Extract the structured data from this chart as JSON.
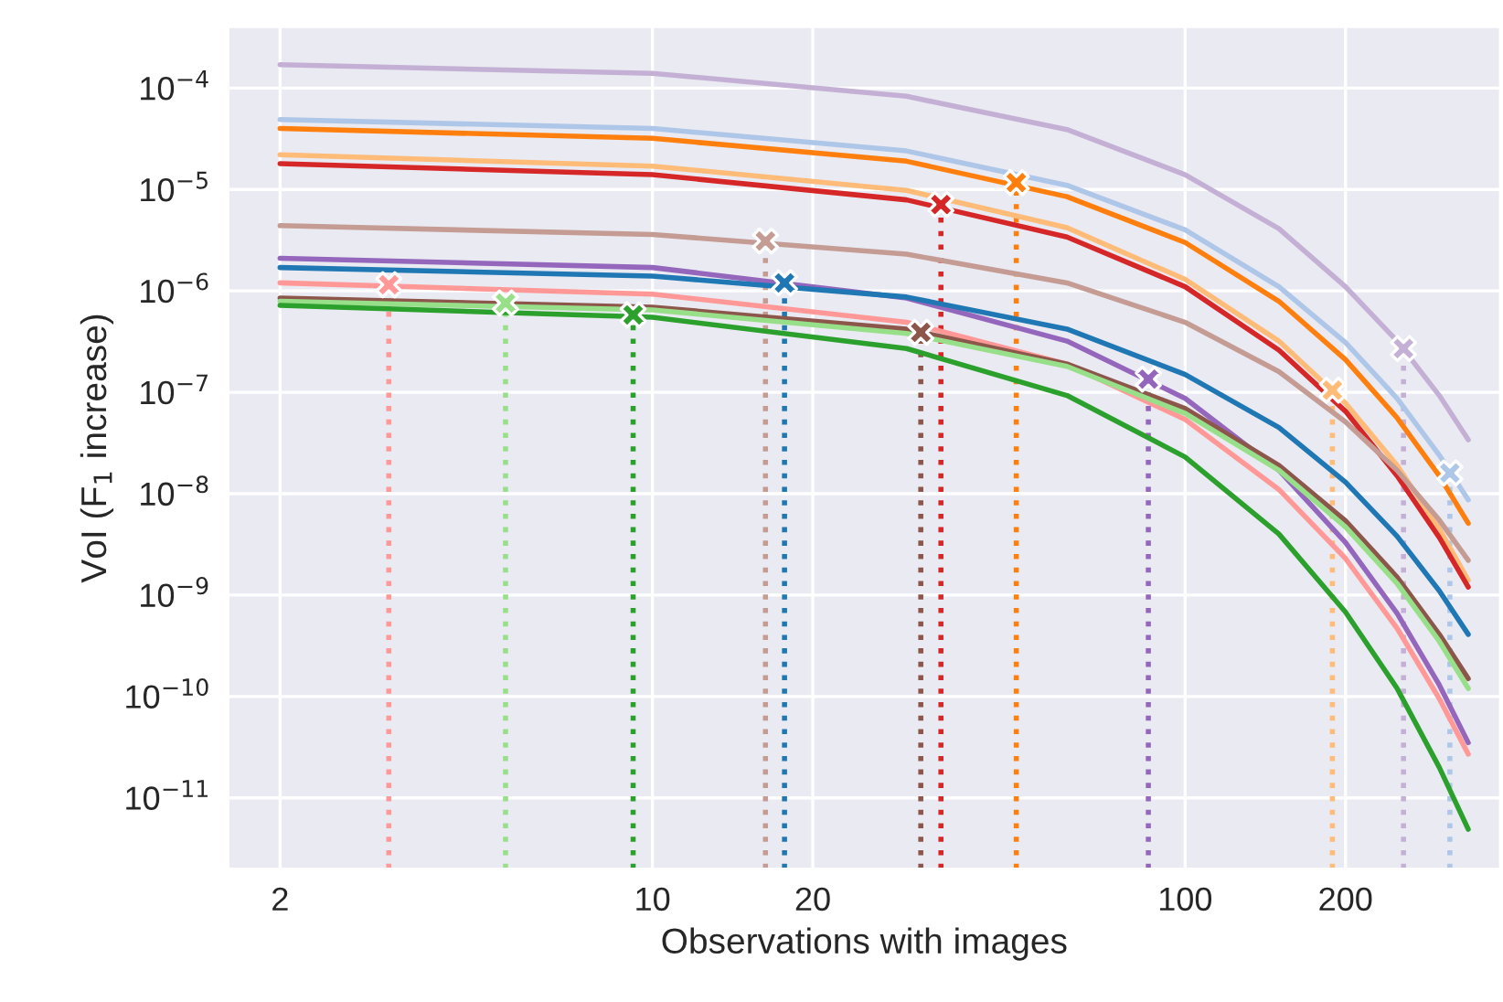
{
  "chart_data": {
    "type": "line",
    "xlabel": "Observations with images",
    "ylabel": "VoI (F$_{1}$ increase)",
    "log": "xy",
    "grid": true,
    "x": [
      2,
      10,
      30,
      60,
      100,
      150,
      200,
      250,
      300,
      340
    ],
    "xlim": [
      1.6,
      390
    ],
    "xticks": [
      2,
      10,
      20,
      100,
      200
    ],
    "ylim": [
      2e-12,
      0.0004
    ],
    "yticks": [
      {
        "value": 0.0001,
        "label": "10$^{−4}$"
      },
      {
        "value": 1e-05,
        "label": "10$^{−5}$"
      },
      {
        "value": 1e-06,
        "label": "10$^{−6}$"
      },
      {
        "value": 1e-07,
        "label": "10$^{−7}$"
      },
      {
        "value": 1e-08,
        "label": "10$^{−8}$"
      },
      {
        "value": 1e-09,
        "label": "10$^{−9}$"
      },
      {
        "value": 1e-10,
        "label": "10$^{−10}$"
      },
      {
        "value": 1e-11,
        "label": "10$^{−11}$"
      }
    ],
    "series": [
      {
        "color": "#c5b0d5",
        "values": [
          0.00017,
          0.00014,
          8.3e-05,
          3.9e-05,
          1.4e-05,
          4.1e-06,
          1.1e-06,
          3.2e-07,
          9.3e-08,
          3.4e-08
        ]
      },
      {
        "color": "#aec7e8",
        "values": [
          4.9e-05,
          4e-05,
          2.4e-05,
          1.1e-05,
          4e-06,
          1.1e-06,
          3.1e-07,
          8.7e-08,
          2.4e-08,
          8.7e-09
        ]
      },
      {
        "color": "#ff7f0e",
        "values": [
          4e-05,
          3.2e-05,
          1.9e-05,
          8.5e-06,
          3e-06,
          7.9e-07,
          2.1e-07,
          5.6e-08,
          1.5e-08,
          5.1e-09
        ]
      },
      {
        "color": "#ffbb78",
        "values": [
          2.2e-05,
          1.7e-05,
          9.8e-06,
          4.2e-06,
          1.3e-06,
          3.2e-07,
          7.8e-08,
          1.9e-08,
          4.5e-09,
          1.4e-09
        ]
      },
      {
        "color": "#d62728",
        "values": [
          1.8e-05,
          1.4e-05,
          7.9e-06,
          3.4e-06,
          1.1e-06,
          2.6e-07,
          6.5e-08,
          1.5e-08,
          3.7e-09,
          1.2e-09
        ]
      },
      {
        "color": "#c49c94",
        "values": [
          4.4e-06,
          3.6e-06,
          2.3e-06,
          1.2e-06,
          4.9e-07,
          1.6e-07,
          5.1e-08,
          1.7e-08,
          5.5e-09,
          2.2e-09
        ]
      },
      {
        "color": "#9467bd",
        "values": [
          2.1e-06,
          1.7e-06,
          8.5e-07,
          3.2e-07,
          8.7e-08,
          1.7e-08,
          3.3e-09,
          6.6e-10,
          1.3e-10,
          3.5e-11
        ]
      },
      {
        "color": "#1f77b4",
        "values": [
          1.7e-06,
          1.4e-06,
          8.7e-07,
          4.2e-07,
          1.5e-07,
          4.5e-08,
          1.3e-08,
          3.8e-09,
          1.1e-09,
          4.1e-10
        ]
      },
      {
        "color": "#ff9896",
        "values": [
          1.2e-06,
          9.3e-07,
          4.9e-07,
          1.9e-07,
          5.4e-08,
          1.1e-08,
          2.3e-09,
          4.7e-10,
          9.5e-11,
          2.7e-11
        ]
      },
      {
        "color": "#8c564b",
        "values": [
          8.5e-07,
          6.9e-07,
          4.2e-07,
          1.9e-07,
          6.9e-08,
          1.9e-08,
          5.4e-09,
          1.5e-09,
          4.1e-10,
          1.5e-10
        ]
      },
      {
        "color": "#98df8a",
        "values": [
          7.9e-07,
          6.5e-07,
          3.8e-07,
          1.8e-07,
          6.2e-08,
          1.7e-08,
          4.7e-09,
          1.3e-09,
          3.5e-10,
          1.2e-10
        ]
      },
      {
        "color": "#2ca02c",
        "values": [
          7.2e-07,
          5.5e-07,
          2.7e-07,
          9.3e-08,
          2.3e-08,
          4e-09,
          6.8e-10,
          1.2e-10,
          2e-11,
          4.9e-12
        ]
      },
      {
        "type": "lollipop",
        "marker": "cross",
        "line_style": "dotted",
        "color": "#ff9896",
        "x": [
          3.2
        ],
        "values": [
          1.15e-06
        ]
      },
      {
        "type": "lollipop",
        "marker": "cross",
        "line_style": "dotted",
        "color": "#98df8a",
        "x": [
          5.3
        ],
        "values": [
          7.6e-07
        ]
      },
      {
        "type": "lollipop",
        "marker": "cross",
        "line_style": "dotted",
        "color": "#2ca02c",
        "x": [
          9.2
        ],
        "values": [
          5.8e-07
        ]
      },
      {
        "type": "lollipop",
        "marker": "cross",
        "line_style": "dotted",
        "color": "#c49c94",
        "x": [
          16.3
        ],
        "values": [
          3.1e-06
        ]
      },
      {
        "type": "lollipop",
        "marker": "cross",
        "line_style": "dotted",
        "color": "#1f77b4",
        "x": [
          17.7
        ],
        "values": [
          1.2e-06
        ]
      },
      {
        "type": "lollipop",
        "marker": "cross",
        "line_style": "dotted",
        "color": "#8c564b",
        "x": [
          31.9
        ],
        "values": [
          3.9e-07
        ]
      },
      {
        "type": "lollipop",
        "marker": "cross",
        "line_style": "dotted",
        "color": "#d62728",
        "x": [
          34.8
        ],
        "values": [
          7.1e-06
        ]
      },
      {
        "type": "lollipop",
        "marker": "cross",
        "line_style": "dotted",
        "color": "#ff7f0e",
        "x": [
          48.2
        ],
        "values": [
          1.17e-05
        ]
      },
      {
        "type": "lollipop",
        "marker": "cross",
        "line_style": "dotted",
        "color": "#9467bd",
        "x": [
          85.3
        ],
        "values": [
          1.35e-07
        ]
      },
      {
        "type": "lollipop",
        "marker": "cross",
        "line_style": "dotted",
        "color": "#ffbb78",
        "x": [
          189
        ],
        "values": [
          1.05e-07
        ]
      },
      {
        "type": "lollipop",
        "marker": "cross",
        "line_style": "dotted",
        "color": "#c5b0d5",
        "x": [
          257
        ],
        "values": [
          2.7e-07
        ]
      },
      {
        "type": "lollipop",
        "marker": "cross",
        "line_style": "dotted",
        "color": "#aec7e8",
        "x": [
          314
        ],
        "values": [
          1.6e-08
        ]
      }
    ]
  }
}
